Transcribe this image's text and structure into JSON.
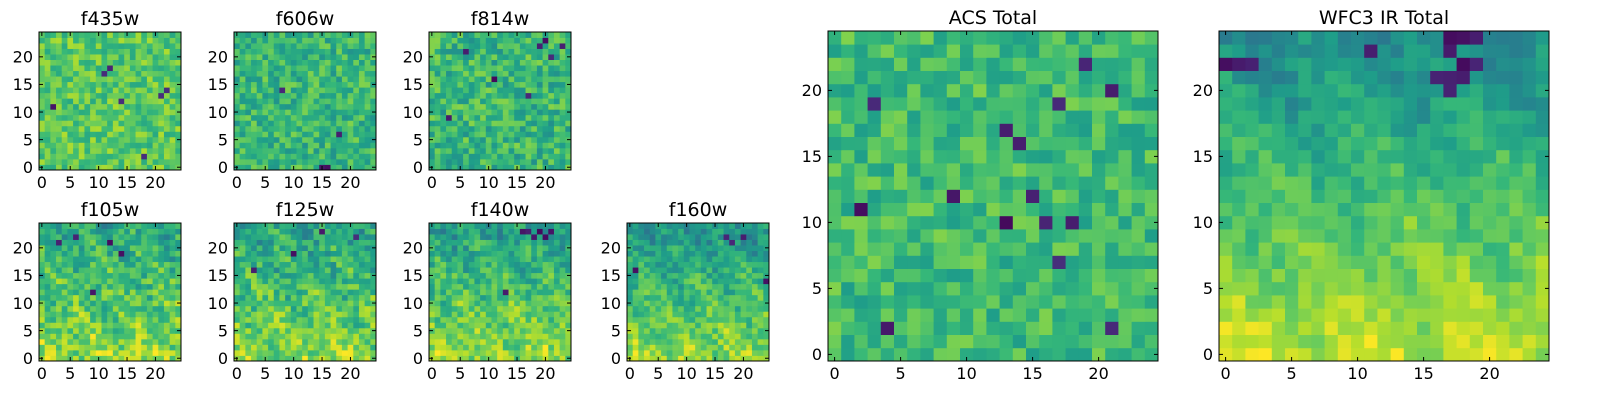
{
  "figure": {
    "background": "#ffffff",
    "colormap": "viridis"
  },
  "chart_data": [
    {
      "type": "heatmap",
      "title": "f435w",
      "grid": [
        25,
        25
      ],
      "xlim": [
        -0.5,
        24.5
      ],
      "ylim": [
        -0.5,
        24.5
      ],
      "xticks": [
        0,
        5,
        10,
        15,
        20
      ],
      "yticks": [
        0,
        5,
        10,
        15,
        20
      ],
      "value_range": [
        0,
        1
      ],
      "pattern": "noise",
      "baseline": 0.74,
      "noise": 0.14,
      "dark_cells": [
        [
          11,
          17
        ],
        [
          12,
          18
        ],
        [
          14,
          12
        ],
        [
          18,
          2
        ],
        [
          22,
          14
        ],
        [
          21,
          13
        ],
        [
          2,
          11
        ]
      ]
    },
    {
      "type": "heatmap",
      "title": "f606w",
      "grid": [
        25,
        25
      ],
      "xlim": [
        -0.5,
        24.5
      ],
      "ylim": [
        -0.5,
        24.5
      ],
      "xticks": [
        0,
        5,
        10,
        15,
        20
      ],
      "yticks": [
        0,
        5,
        10,
        15,
        20
      ],
      "value_range": [
        0,
        1
      ],
      "pattern": "noise",
      "baseline": 0.66,
      "noise": 0.15,
      "dark_cells": [
        [
          15,
          0
        ],
        [
          16,
          0
        ],
        [
          18,
          6
        ],
        [
          8,
          14
        ]
      ]
    },
    {
      "type": "heatmap",
      "title": "f814w",
      "grid": [
        25,
        25
      ],
      "xlim": [
        -0.5,
        24.5
      ],
      "ylim": [
        -0.5,
        24.5
      ],
      "xticks": [
        0,
        5,
        10,
        15,
        20
      ],
      "yticks": [
        0,
        5,
        10,
        15,
        20
      ],
      "value_range": [
        0,
        1
      ],
      "pattern": "noise",
      "baseline": 0.66,
      "noise": 0.16,
      "dark_cells": [
        [
          19,
          22
        ],
        [
          20,
          23
        ],
        [
          21,
          20
        ],
        [
          23,
          22
        ],
        [
          17,
          13
        ],
        [
          3,
          9
        ],
        [
          11,
          16
        ],
        [
          6,
          21
        ]
      ]
    },
    {
      "type": "heatmap",
      "title": "f105w",
      "grid": [
        25,
        25
      ],
      "xlim": [
        -0.5,
        24.5
      ],
      "ylim": [
        -0.5,
        24.5
      ],
      "xticks": [
        0,
        5,
        10,
        15,
        20
      ],
      "yticks": [
        0,
        5,
        10,
        15,
        20
      ],
      "value_range": [
        0,
        1
      ],
      "pattern": "gradient",
      "baseline": 0.72,
      "noise": 0.15,
      "gradient": 0.25,
      "dark_cells": [
        [
          3,
          21
        ],
        [
          6,
          22
        ],
        [
          12,
          21
        ],
        [
          9,
          12
        ],
        [
          14,
          19
        ]
      ]
    },
    {
      "type": "heatmap",
      "title": "f125w",
      "grid": [
        25,
        25
      ],
      "xlim": [
        -0.5,
        24.5
      ],
      "ylim": [
        -0.5,
        24.5
      ],
      "xticks": [
        0,
        5,
        10,
        15,
        20
      ],
      "yticks": [
        0,
        5,
        10,
        15,
        20
      ],
      "value_range": [
        0,
        1
      ],
      "pattern": "gradient",
      "baseline": 0.7,
      "noise": 0.15,
      "gradient": 0.25,
      "dark_cells": [
        [
          15,
          23
        ],
        [
          21,
          22
        ],
        [
          10,
          19
        ],
        [
          3,
          16
        ]
      ]
    },
    {
      "type": "heatmap",
      "title": "f140w",
      "grid": [
        25,
        25
      ],
      "xlim": [
        -0.5,
        24.5
      ],
      "ylim": [
        -0.5,
        24.5
      ],
      "xticks": [
        0,
        5,
        10,
        15,
        20
      ],
      "yticks": [
        0,
        5,
        10,
        15,
        20
      ],
      "value_range": [
        0,
        1
      ],
      "pattern": "gradient",
      "baseline": 0.7,
      "noise": 0.14,
      "gradient": 0.3,
      "dark_cells": [
        [
          16,
          23
        ],
        [
          17,
          23
        ],
        [
          18,
          22
        ],
        [
          19,
          23
        ],
        [
          20,
          22
        ],
        [
          21,
          23
        ],
        [
          13,
          12
        ]
      ]
    },
    {
      "type": "heatmap",
      "title": "f160w",
      "grid": [
        25,
        25
      ],
      "xlim": [
        -0.5,
        24.5
      ],
      "ylim": [
        -0.5,
        24.5
      ],
      "xticks": [
        0,
        5,
        10,
        15,
        20
      ],
      "yticks": [
        0,
        5,
        10,
        15,
        20
      ],
      "value_range": [
        0,
        1
      ],
      "pattern": "gradient",
      "baseline": 0.68,
      "noise": 0.12,
      "gradient": 0.34,
      "dark_cells": [
        [
          18,
          21
        ],
        [
          20,
          22
        ],
        [
          17,
          22
        ],
        [
          24,
          14
        ],
        [
          1,
          16
        ]
      ]
    },
    {
      "type": "heatmap",
      "title": "ACS Total",
      "grid": [
        25,
        25
      ],
      "xlim": [
        -0.5,
        24.5
      ],
      "ylim": [
        -0.5,
        24.5
      ],
      "xticks": [
        0,
        5,
        10,
        15,
        20
      ],
      "yticks": [
        0,
        5,
        10,
        15,
        20
      ],
      "value_range": [
        0,
        1
      ],
      "pattern": "noise",
      "baseline": 0.68,
      "noise": 0.13,
      "dark_cells": [
        [
          3,
          19
        ],
        [
          17,
          19
        ],
        [
          2,
          11
        ],
        [
          9,
          12
        ],
        [
          13,
          10
        ],
        [
          16,
          10
        ],
        [
          18,
          10
        ],
        [
          15,
          12
        ],
        [
          17,
          7
        ],
        [
          21,
          2
        ],
        [
          14,
          16
        ],
        [
          13,
          17
        ],
        [
          19,
          22
        ],
        [
          21,
          20
        ],
        [
          4,
          2
        ]
      ]
    },
    {
      "type": "heatmap",
      "title": "WFC3 IR Total",
      "grid": [
        25,
        25
      ],
      "xlim": [
        -0.5,
        24.5
      ],
      "ylim": [
        -0.5,
        24.5
      ],
      "xticks": [
        0,
        5,
        10,
        15,
        20
      ],
      "yticks": [
        0,
        5,
        10,
        15,
        20
      ],
      "value_range": [
        0,
        1
      ],
      "pattern": "gradient",
      "baseline": 0.7,
      "noise": 0.08,
      "gradient": 0.42,
      "dark_cells": [
        [
          17,
          24
        ],
        [
          18,
          24
        ],
        [
          19,
          24
        ],
        [
          17,
          23
        ],
        [
          18,
          22
        ],
        [
          19,
          22
        ],
        [
          18,
          21
        ],
        [
          17,
          21
        ],
        [
          1,
          22
        ],
        [
          2,
          22
        ],
        [
          0,
          22
        ],
        [
          11,
          23
        ],
        [
          16,
          21
        ],
        [
          17,
          20
        ]
      ]
    }
  ]
}
